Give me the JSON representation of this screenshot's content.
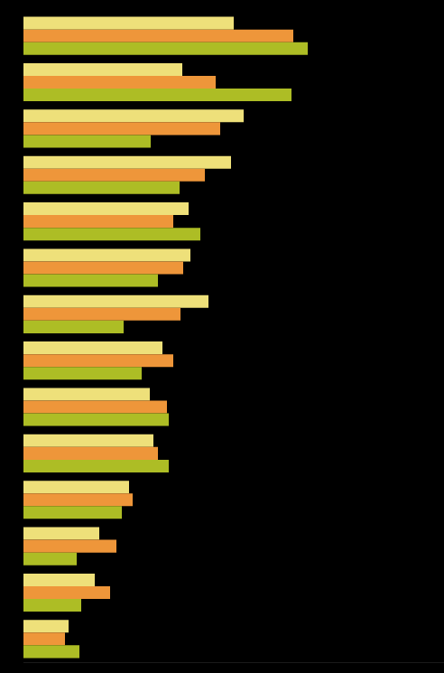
{
  "chart_data": {
    "type": "bar",
    "orientation": "horizontal",
    "tick_labels": false,
    "grid": false,
    "categories": [
      null,
      null,
      null,
      null,
      null,
      null,
      null,
      null,
      null,
      null,
      null,
      null,
      null,
      null
    ],
    "xlim": [
      0,
      466
    ],
    "series": [
      {
        "color": "#eee07a",
        "values": [
          233,
          176,
          244,
          230,
          183,
          185,
          205,
          154,
          140,
          144,
          117,
          84,
          79,
          50
        ]
      },
      {
        "color": "#ee963a",
        "values": [
          299,
          213,
          218,
          201,
          166,
          177,
          174,
          166,
          159,
          149,
          121,
          103,
          96,
          46
        ]
      },
      {
        "color": "#adbd25",
        "values": [
          315,
          297,
          141,
          173,
          196,
          149,
          111,
          131,
          161,
          161,
          109,
          59,
          64,
          62
        ]
      }
    ]
  }
}
